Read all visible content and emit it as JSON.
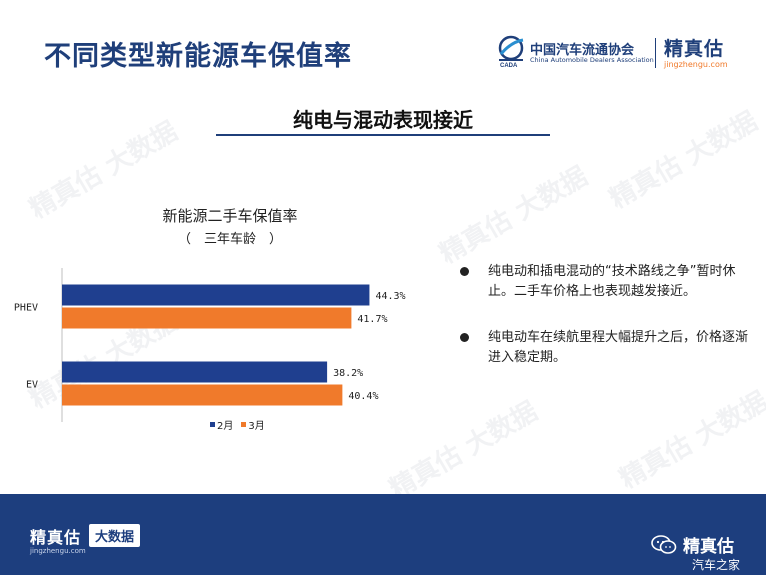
{
  "slide": {
    "title": "不同类型新能源车保值率",
    "subtitle": "纯电与混动表现接近"
  },
  "logos": {
    "cada_cn": "中国汽车流通协会",
    "cada_en": "China Automobile Dealers Association",
    "jzg_cn": "精真估",
    "jzg_url": "jingzhengu.com"
  },
  "chart_data": {
    "type": "bar",
    "orientation": "horizontal",
    "title": "新能源二手车保值率",
    "subtitle": "（　三年车龄　）",
    "categories": [
      "PHEV",
      "EV"
    ],
    "series": [
      {
        "name": "2月",
        "color": "#1f3f8f",
        "values": [
          44.3,
          38.2
        ]
      },
      {
        "name": "3月",
        "color": "#f07a2b",
        "values": [
          41.7,
          40.4
        ]
      }
    ],
    "value_format": "%",
    "xlim": [
      0,
      50
    ],
    "grid": false,
    "legend": "bottom"
  },
  "bullets": [
    "纯电动和插电混动的“技术路线之争”暂时休止。二手车价格上也表现越发接近。",
    "纯电动车在续航里程大幅提升之后，价格逐渐进入稳定期。"
  ],
  "footer": {
    "logo_cn": "精真估",
    "logo_url": "jingzhengu.com",
    "badge": "大数据",
    "wechat_label": "精真估",
    "corner_text": "汽车之家"
  },
  "watermark": "精真估 大数据"
}
